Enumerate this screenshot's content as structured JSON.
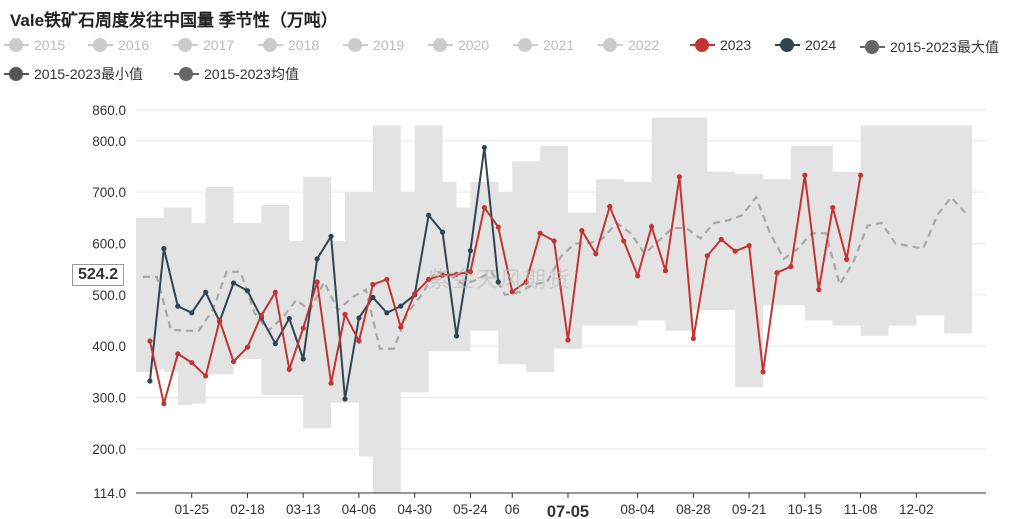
{
  "title": "Vale铁矿石周度发往中国量 季节性（万吨）",
  "watermark": "紫金天风期货",
  "cursor_value": "524.2",
  "colors": {
    "inactive": "#cccccc",
    "y2023": "#c23531",
    "y2024": "#2f4554",
    "max": "#666666",
    "min": "#555555",
    "avg": "#666666",
    "band": "#e3e3e3",
    "avg_line": "#a8a8a8"
  },
  "legend": {
    "items": [
      {
        "label": "2015",
        "color": "#cccccc",
        "active": false
      },
      {
        "label": "2016",
        "color": "#cccccc",
        "active": false
      },
      {
        "label": "2017",
        "color": "#cccccc",
        "active": false
      },
      {
        "label": "2018",
        "color": "#cccccc",
        "active": false
      },
      {
        "label": "2019",
        "color": "#cccccc",
        "active": false
      },
      {
        "label": "2020",
        "color": "#cccccc",
        "active": false
      },
      {
        "label": "2021",
        "color": "#cccccc",
        "active": false
      },
      {
        "label": "2022",
        "color": "#cccccc",
        "active": false
      },
      {
        "label": "2023",
        "color": "#c23531",
        "active": true
      },
      {
        "label": "2024",
        "color": "#2f4554",
        "active": true
      },
      {
        "label": "2015-2023最大值",
        "color": "#666666",
        "active": true
      },
      {
        "label": "2015-2023最小值",
        "color": "#555555",
        "active": true
      },
      {
        "label": "2015-2023均值",
        "color": "#666666",
        "active": true
      }
    ]
  },
  "chart_data": {
    "type": "line",
    "ylim": [
      114,
      860
    ],
    "yticks": [
      "860.0",
      "800.0",
      "700.0",
      "600.0",
      "500.0",
      "400.0",
      "300.0",
      "200.0",
      "114.0"
    ],
    "ytick_values": [
      860,
      800,
      700,
      600,
      500,
      400,
      300,
      200,
      114
    ],
    "xticks": [
      "01-25",
      "02-18",
      "03-13",
      "04-06",
      "04-30",
      "05-24",
      "06",
      "07-05",
      "08-04",
      "08-28",
      "09-21",
      "10-15",
      "11-08",
      "12-02"
    ],
    "xtick_weeks": [
      4,
      8,
      12,
      16,
      20,
      24,
      27,
      31,
      36,
      40,
      44,
      48,
      52,
      56
    ],
    "highlight_tick": "07-05",
    "week_range": [
      0,
      61
    ],
    "series": [
      {
        "name": "2023",
        "values": [
          410,
          288,
          385,
          368,
          342,
          450,
          370,
          398,
          460,
          505,
          355,
          435,
          525,
          328,
          462,
          410,
          520,
          530,
          437,
          502,
          530,
          538,
          540,
          545,
          670,
          632,
          506,
          525,
          620,
          605,
          412,
          625,
          580,
          672,
          605,
          537,
          633,
          547,
          730,
          415,
          576,
          608,
          585,
          596,
          350,
          543,
          555,
          733,
          510,
          670,
          569,
          733
        ]
      },
      {
        "name": "2024",
        "values": [
          332,
          590,
          478,
          465,
          505,
          448,
          523,
          508,
          455,
          405,
          454,
          375,
          570,
          614,
          297,
          455,
          495,
          465,
          478,
          500,
          655,
          622,
          420,
          586,
          787,
          525
        ]
      },
      {
        "name": "2015-2023最大值",
        "values": [
          650,
          650,
          670,
          670,
          640,
          710,
          710,
          640,
          640,
          675,
          675,
          605,
          730,
          730,
          605,
          700,
          700,
          830,
          830,
          700,
          830,
          830,
          720,
          670,
          720,
          720,
          700,
          760,
          760,
          790,
          790,
          660,
          660,
          725,
          725,
          720,
          720,
          845,
          845,
          845,
          845,
          740,
          740,
          735,
          735,
          725,
          725,
          790,
          790,
          790,
          740,
          740,
          830,
          830,
          830,
          830,
          830,
          830,
          830,
          830
        ]
      },
      {
        "name": "2015-2023最小值",
        "values": [
          350,
          355,
          350,
          285,
          288,
          345,
          345,
          375,
          375,
          305,
          305,
          305,
          240,
          240,
          290,
          290,
          185,
          114,
          114,
          310,
          310,
          390,
          390,
          390,
          430,
          430,
          365,
          365,
          350,
          350,
          395,
          395,
          440,
          440,
          440,
          440,
          450,
          450,
          430,
          430,
          470,
          470,
          470,
          320,
          320,
          480,
          480,
          480,
          450,
          450,
          440,
          440,
          420,
          420,
          440,
          440,
          460,
          460,
          425,
          425
        ]
      },
      {
        "name": "2015-2023均值",
        "values": [
          535,
          535,
          432,
          430,
          430,
          470,
          545,
          545,
          465,
          430,
          455,
          490,
          470,
          525,
          470,
          495,
          510,
          395,
          395,
          465,
          500,
          545,
          540,
          520,
          530,
          545,
          500,
          505,
          520,
          525,
          575,
          600,
          600,
          610,
          640,
          620,
          580,
          605,
          630,
          630,
          610,
          640,
          645,
          655,
          690,
          620,
          570,
          590,
          620,
          620,
          520,
          565,
          635,
          640,
          600,
          595,
          590,
          655,
          690,
          660
        ]
      }
    ]
  }
}
